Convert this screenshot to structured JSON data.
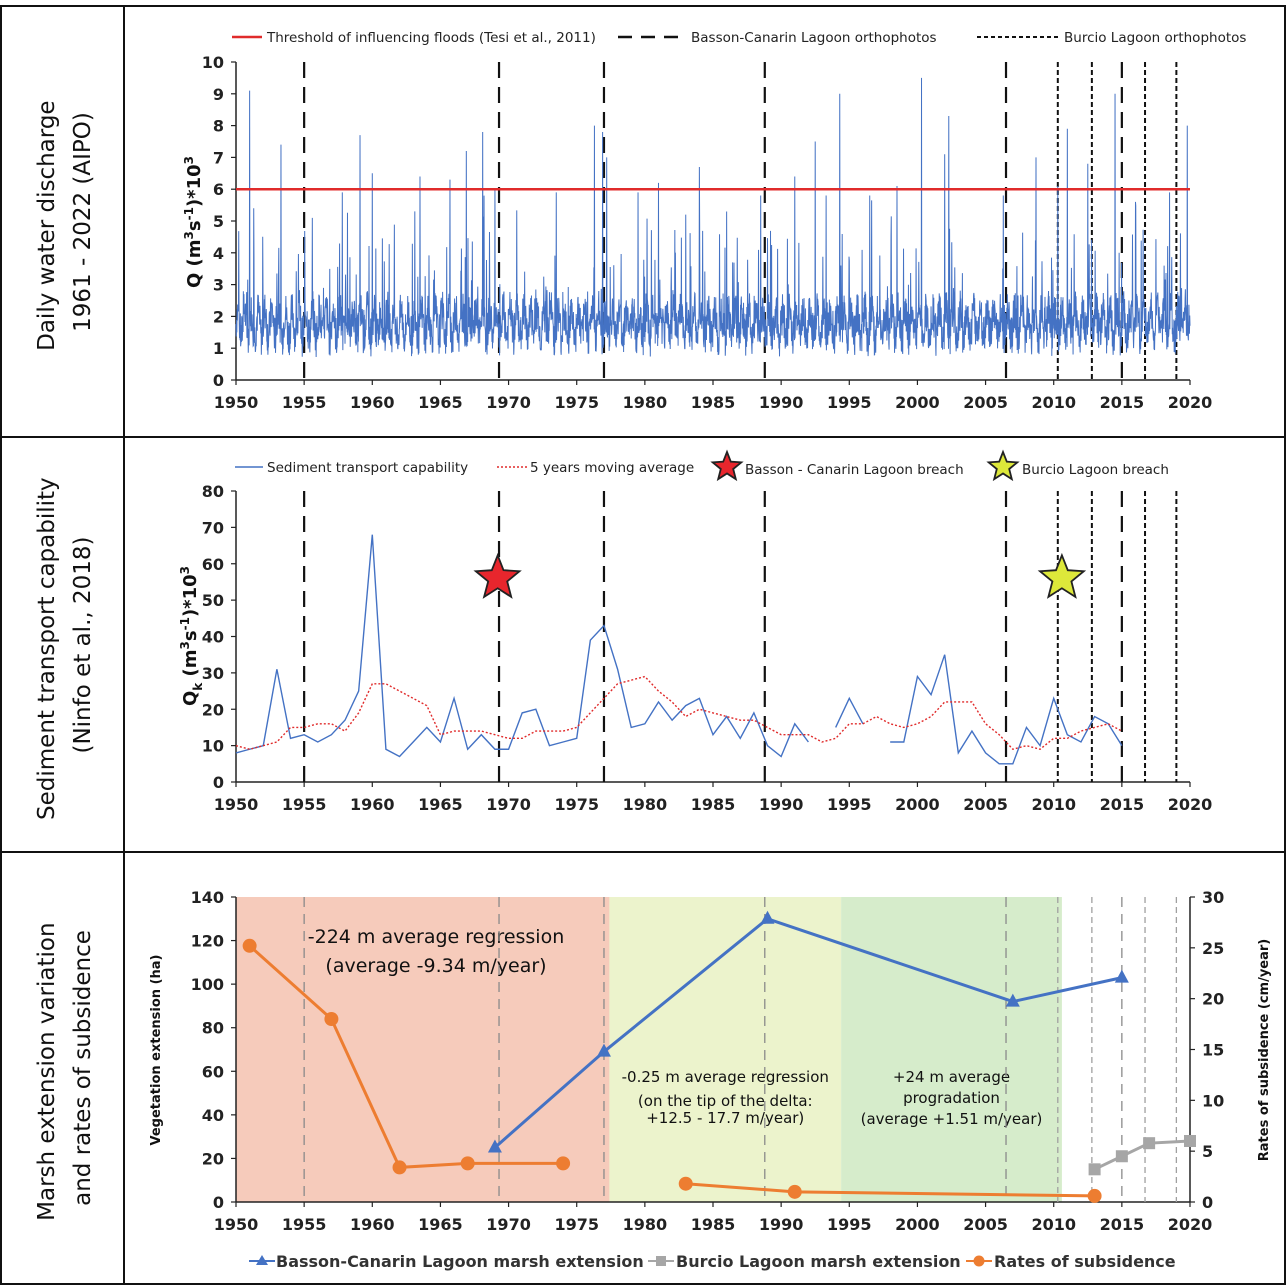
{
  "row_labels": {
    "row1": [
      "Daily water discharge",
      "1961 - 2022 (AIPO)"
    ],
    "row2": [
      "Sediment transport capability",
      "(Ninfo et al., 2018)"
    ],
    "row3": [
      "Marsh extension variation",
      "and rates of subsidence"
    ]
  },
  "colors": {
    "discharge": "#4472c4",
    "threshold": "#e02b2b",
    "moving_avg": "#e02b2b",
    "basson": "#4472c4",
    "burcio": "#a6a6a6",
    "subsidence": "#ed7d31",
    "star_red": "#e8262d",
    "star_yellow": "#dde83a",
    "phase1": "#f6cbbb",
    "phase2": "#ecf3cc",
    "phase3": "#d6eccb"
  },
  "chart_data": [
    {
      "type": "line",
      "ylabel_main": "Q (m",
      "ylabel_sup1": "3",
      "ylabel_mid": "s",
      "ylabel_sup2": "-1",
      "ylabel_end": ")*10",
      "ylabel_sup3": "3",
      "xlim": [
        1950,
        2020
      ],
      "ylim": [
        0,
        10
      ],
      "x_ticks": [
        "1950",
        "1955",
        "1960",
        "1965",
        "1970",
        "1975",
        "1980",
        "1985",
        "1990",
        "1995",
        "2000",
        "2005",
        "2010",
        "2015",
        "2020"
      ],
      "y_ticks": [
        "0",
        "1",
        "2",
        "3",
        "4",
        "5",
        "6",
        "7",
        "8",
        "9",
        "10"
      ],
      "legend": {
        "threshold": "Threshold of  influencing floods (Tesi et al., 2011)",
        "basson_ortho": "Basson-Canarin Lagoon orthophotos",
        "burcio_ortho": "Burcio Lagoon orthophotos"
      },
      "threshold_value": 6,
      "data_start_year": 1950,
      "baseline_level": 1.2,
      "flood_peaks": [
        {
          "year": 1951.0,
          "value": 9.1
        },
        {
          "year": 1951.3,
          "value": 5.4
        },
        {
          "year": 1953.3,
          "value": 7.4
        },
        {
          "year": 1955.6,
          "value": 5.1
        },
        {
          "year": 1957.8,
          "value": 5.9
        },
        {
          "year": 1959.1,
          "value": 7.7
        },
        {
          "year": 1960.0,
          "value": 6.5
        },
        {
          "year": 1963.5,
          "value": 6.4
        },
        {
          "year": 1965.7,
          "value": 6.3
        },
        {
          "year": 1966.9,
          "value": 7.2
        },
        {
          "year": 1968.1,
          "value": 7.8
        },
        {
          "year": 1969.0,
          "value": 6.0
        },
        {
          "year": 1973.5,
          "value": 5.9
        },
        {
          "year": 1976.3,
          "value": 8.0
        },
        {
          "year": 1976.9,
          "value": 7.8
        },
        {
          "year": 1977.2,
          "value": 7.0
        },
        {
          "year": 1979.5,
          "value": 5.9
        },
        {
          "year": 1981.0,
          "value": 6.2
        },
        {
          "year": 1983.0,
          "value": 5.2
        },
        {
          "year": 1984.0,
          "value": 6.7
        },
        {
          "year": 1986.0,
          "value": 5.3
        },
        {
          "year": 1988.5,
          "value": 5.8
        },
        {
          "year": 1991.0,
          "value": 6.4
        },
        {
          "year": 1992.5,
          "value": 7.5
        },
        {
          "year": 1993.3,
          "value": 5.8
        },
        {
          "year": 1994.3,
          "value": 9.0
        },
        {
          "year": 1996.5,
          "value": 5.8
        },
        {
          "year": 1998.5,
          "value": 6.1
        },
        {
          "year": 2000.3,
          "value": 9.5
        },
        {
          "year": 2002.0,
          "value": 7.1
        },
        {
          "year": 2002.3,
          "value": 8.3
        },
        {
          "year": 2006.3,
          "value": 5.8
        },
        {
          "year": 2008.7,
          "value": 7.0
        },
        {
          "year": 2010.3,
          "value": 6.1
        },
        {
          "year": 2011.0,
          "value": 7.9
        },
        {
          "year": 2012.5,
          "value": 6.8
        },
        {
          "year": 2014.5,
          "value": 9.0
        },
        {
          "year": 2016.0,
          "value": 5.6
        },
        {
          "year": 2018.5,
          "value": 5.9
        },
        {
          "year": 2019.8,
          "value": 8.0
        }
      ],
      "basson_ortho_years": [
        1955,
        1969.3,
        1977,
        1988.8,
        2006.5,
        2015
      ],
      "burcio_ortho_years": [
        2010.3,
        2012.8,
        2016.7,
        2019
      ]
    },
    {
      "type": "line",
      "ylabel_main": "Q",
      "ylabel_sub": "k",
      "ylabel_rest": " (m",
      "ylabel_sup1": "3",
      "ylabel_mid": "s",
      "ylabel_sup2": "-1",
      "ylabel_end": ")*10",
      "ylabel_sup3": "3",
      "xlim": [
        1950,
        2020
      ],
      "ylim": [
        0,
        80
      ],
      "x_ticks": [
        "1950",
        "1955",
        "1960",
        "1965",
        "1970",
        "1975",
        "1980",
        "1985",
        "1990",
        "1995",
        "2000",
        "2005",
        "2010",
        "2015",
        "2020"
      ],
      "y_ticks": [
        "0",
        "10",
        "20",
        "30",
        "40",
        "50",
        "60",
        "70",
        "80"
      ],
      "legend": {
        "capability": "Sediment transport capability",
        "moving_avg": "5 years moving average",
        "basson_breach": "Basson - Canarin Lagoon breach",
        "burcio_breach": "Burcio Lagoon breach"
      },
      "series": [
        {
          "name": "Sediment transport capability",
          "segments": [
            [
              [
                1950,
                8
              ],
              [
                1951,
                9
              ],
              [
                1952,
                10
              ],
              [
                1953,
                31
              ],
              [
                1954,
                12
              ],
              [
                1955,
                13
              ],
              [
                1956,
                11
              ],
              [
                1957,
                13
              ],
              [
                1958,
                17
              ],
              [
                1959,
                25
              ],
              [
                1960,
                68
              ],
              [
                1961,
                9
              ],
              [
                1962,
                7
              ],
              [
                1963,
                11
              ],
              [
                1964,
                15
              ],
              [
                1965,
                11
              ],
              [
                1966,
                23
              ],
              [
                1967,
                9
              ],
              [
                1968,
                13
              ],
              [
                1969,
                9
              ],
              [
                1970,
                9
              ],
              [
                1971,
                19
              ],
              [
                1972,
                20
              ],
              [
                1973,
                10
              ],
              [
                1974,
                11
              ],
              [
                1975,
                12
              ],
              [
                1976,
                39
              ],
              [
                1977,
                43
              ],
              [
                1978,
                31
              ],
              [
                1979,
                15
              ],
              [
                1980,
                16
              ],
              [
                1981,
                22
              ],
              [
                1982,
                17
              ],
              [
                1983,
                21
              ],
              [
                1984,
                23
              ],
              [
                1985,
                13
              ],
              [
                1986,
                18
              ],
              [
                1987,
                12
              ],
              [
                1988,
                19
              ],
              [
                1989,
                10
              ],
              [
                1990,
                7
              ],
              [
                1991,
                16
              ],
              [
                1992,
                11
              ]
            ],
            [
              [
                1994,
                15
              ],
              [
                1995,
                23
              ],
              [
                1996,
                16
              ]
            ],
            [
              [
                1998,
                11
              ],
              [
                1999,
                11
              ],
              [
                2000,
                29
              ],
              [
                2001,
                24
              ],
              [
                2002,
                35
              ],
              [
                2003,
                8
              ],
              [
                2004,
                14
              ],
              [
                2005,
                8
              ],
              [
                2006,
                5
              ],
              [
                2007,
                5
              ],
              [
                2008,
                15
              ],
              [
                2009,
                10
              ],
              [
                2010,
                23
              ],
              [
                2011,
                13
              ],
              [
                2012,
                11
              ],
              [
                2013,
                18
              ],
              [
                2014,
                16
              ],
              [
                2015,
                10
              ]
            ]
          ]
        },
        {
          "name": "5 years moving average",
          "segments": [
            [
              [
                1950,
                10
              ],
              [
                1951,
                9
              ],
              [
                1952,
                10
              ],
              [
                1953,
                11
              ],
              [
                1954,
                15
              ],
              [
                1955,
                15
              ],
              [
                1956,
                16
              ],
              [
                1957,
                16
              ],
              [
                1958,
                14
              ],
              [
                1959,
                19
              ],
              [
                1960,
                27
              ],
              [
                1961,
                27
              ],
              [
                1962,
                25
              ],
              [
                1963,
                23
              ],
              [
                1964,
                21
              ],
              [
                1965,
                13
              ],
              [
                1966,
                14
              ],
              [
                1967,
                14
              ],
              [
                1968,
                14
              ],
              [
                1969,
                13
              ],
              [
                1970,
                12
              ],
              [
                1971,
                12
              ],
              [
                1972,
                14
              ],
              [
                1973,
                14
              ],
              [
                1974,
                14
              ],
              [
                1975,
                15
              ],
              [
                1976,
                19
              ],
              [
                1977,
                23
              ],
              [
                1978,
                27
              ],
              [
                1979,
                28
              ],
              [
                1980,
                29
              ],
              [
                1981,
                25
              ],
              [
                1982,
                22
              ],
              [
                1983,
                18
              ],
              [
                1984,
                20
              ],
              [
                1985,
                19
              ],
              [
                1986,
                18
              ],
              [
                1987,
                17
              ],
              [
                1988,
                17
              ],
              [
                1989,
                15
              ],
              [
                1990,
                13
              ],
              [
                1991,
                13
              ],
              [
                1992,
                13
              ],
              [
                1993,
                11
              ],
              [
                1994,
                12
              ],
              [
                1995,
                16
              ],
              [
                1996,
                16
              ],
              [
                1997,
                18
              ],
              [
                1998,
                16
              ],
              [
                1999,
                15
              ],
              [
                2000,
                16
              ],
              [
                2001,
                18
              ],
              [
                2002,
                22
              ],
              [
                2003,
                22
              ],
              [
                2004,
                22
              ],
              [
                2005,
                16
              ],
              [
                2006,
                13
              ],
              [
                2007,
                9
              ],
              [
                2008,
                10
              ],
              [
                2009,
                9
              ],
              [
                2010,
                12
              ],
              [
                2011,
                12
              ],
              [
                2012,
                14
              ],
              [
                2013,
                15
              ],
              [
                2014,
                16
              ],
              [
                2015,
                14
              ]
            ]
          ]
        }
      ],
      "basson_breach": {
        "year": 1969.2,
        "value": 56
      },
      "burcio_breach": {
        "year": 2010.6,
        "value": 56
      },
      "basson_ortho_years": [
        1955,
        1969.3,
        1977,
        1988.8,
        2006.5,
        2015
      ],
      "burcio_ortho_years": [
        2010.3,
        2012.8,
        2016.7,
        2019
      ]
    },
    {
      "type": "line",
      "ylabel_left": "Vegetation extension (ha)",
      "ylabel_right": "Rates of subsidence (cm/year)",
      "xlim": [
        1950,
        2020
      ],
      "ylim_left": [
        0,
        140
      ],
      "ylim_right": [
        0,
        30
      ],
      "x_ticks": [
        "1950",
        "1955",
        "1960",
        "1965",
        "1970",
        "1975",
        "1980",
        "1985",
        "1990",
        "1995",
        "2000",
        "2005",
        "2010",
        "2015",
        "2020"
      ],
      "y_ticks_left": [
        "0",
        "20",
        "40",
        "60",
        "80",
        "100",
        "120",
        "140"
      ],
      "y_ticks_right": [
        "0",
        "5",
        "10",
        "15",
        "20",
        "25",
        "30"
      ],
      "phases": [
        {
          "from": 1950,
          "to": 1977.4,
          "lines": [
            "-224 m average regression",
            "(average -9.34 m/year)"
          ]
        },
        {
          "from": 1977.4,
          "to": 1994.4,
          "lines": [
            "-0.25 m average regression",
            "(on the tip of the delta:",
            "+12.5 - 17.7 m/year)"
          ]
        },
        {
          "from": 1994.4,
          "to": 2010.6,
          "lines": [
            "+24 m average",
            "progradation",
            "(average +1.51 m/year)"
          ]
        }
      ],
      "series": [
        {
          "name": "Basson-Canarin Lagoon marsh extension",
          "axis": "left",
          "points": [
            [
              1969,
              25
            ],
            [
              1977,
              69
            ],
            [
              1989,
              130
            ],
            [
              2007,
              92
            ],
            [
              2015,
              103
            ]
          ]
        },
        {
          "name": "Burcio Lagoon marsh extension",
          "axis": "left",
          "points": [
            [
              2013,
              15
            ],
            [
              2015,
              21
            ],
            [
              2017,
              27
            ],
            [
              2020,
              28
            ]
          ]
        },
        {
          "name": "Rates of subsidence",
          "axis": "right",
          "segments": [
            [
              [
                1951,
                25.2
              ],
              [
                1957,
                18
              ],
              [
                1962,
                3.4
              ],
              [
                1967,
                3.8
              ],
              [
                1974,
                3.8
              ]
            ],
            [
              [
                1983,
                1.8
              ],
              [
                1991,
                1.0
              ],
              [
                2013,
                0.6
              ]
            ]
          ]
        }
      ],
      "basson_ortho_years": [
        1955,
        1969.3,
        1977,
        1988.8,
        2006.5,
        2015
      ],
      "burcio_ortho_years": [
        2010.3,
        2012.8,
        2016.7,
        2019
      ]
    }
  ]
}
